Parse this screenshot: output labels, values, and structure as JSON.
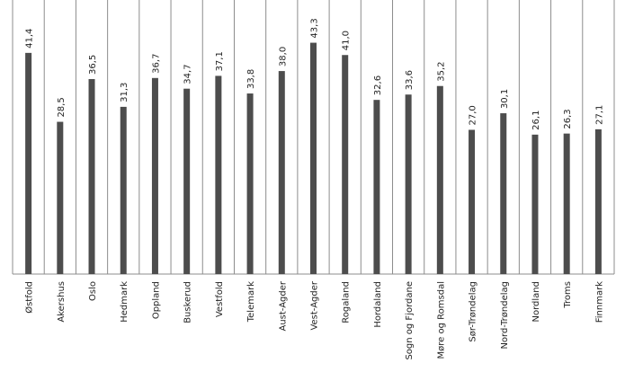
{
  "chart_data": {
    "type": "bar",
    "title": "",
    "xlabel": "",
    "ylabel": "",
    "ylim": [
      0,
      51.3
    ],
    "grid": "vertical separators",
    "categories": [
      "Østfold",
      "Akershus",
      "Oslo",
      "Hedmark",
      "Oppland",
      "Buskerud",
      "Vestfold",
      "Telemark",
      "Aust-Agder",
      "Vest-Agder",
      "Rogaland",
      "Hordaland",
      "Sogn og Fjordane",
      "Møre og Romsdal",
      "Sør-Trøndelag",
      "Nord-Trøndelag",
      "Nordland",
      "Troms",
      "Finnmark"
    ],
    "values": [
      41.4,
      28.5,
      36.5,
      31.3,
      36.7,
      34.7,
      37.1,
      33.8,
      38.0,
      43.3,
      41.0,
      32.6,
      33.6,
      35.2,
      27.0,
      30.1,
      26.1,
      26.3,
      27.1
    ],
    "value_labels": [
      "41,4",
      "28,5",
      "36,5",
      "31,3",
      "36,7",
      "34,7",
      "37,1",
      "33,8",
      "38,0",
      "43,3",
      "41,0",
      "32,6",
      "33,6",
      "35,2",
      "27,0",
      "30,1",
      "26,1",
      "26,3",
      "27,1"
    ],
    "bar_color": "#4d4d4d",
    "grid_color": "#8c8c8c"
  }
}
